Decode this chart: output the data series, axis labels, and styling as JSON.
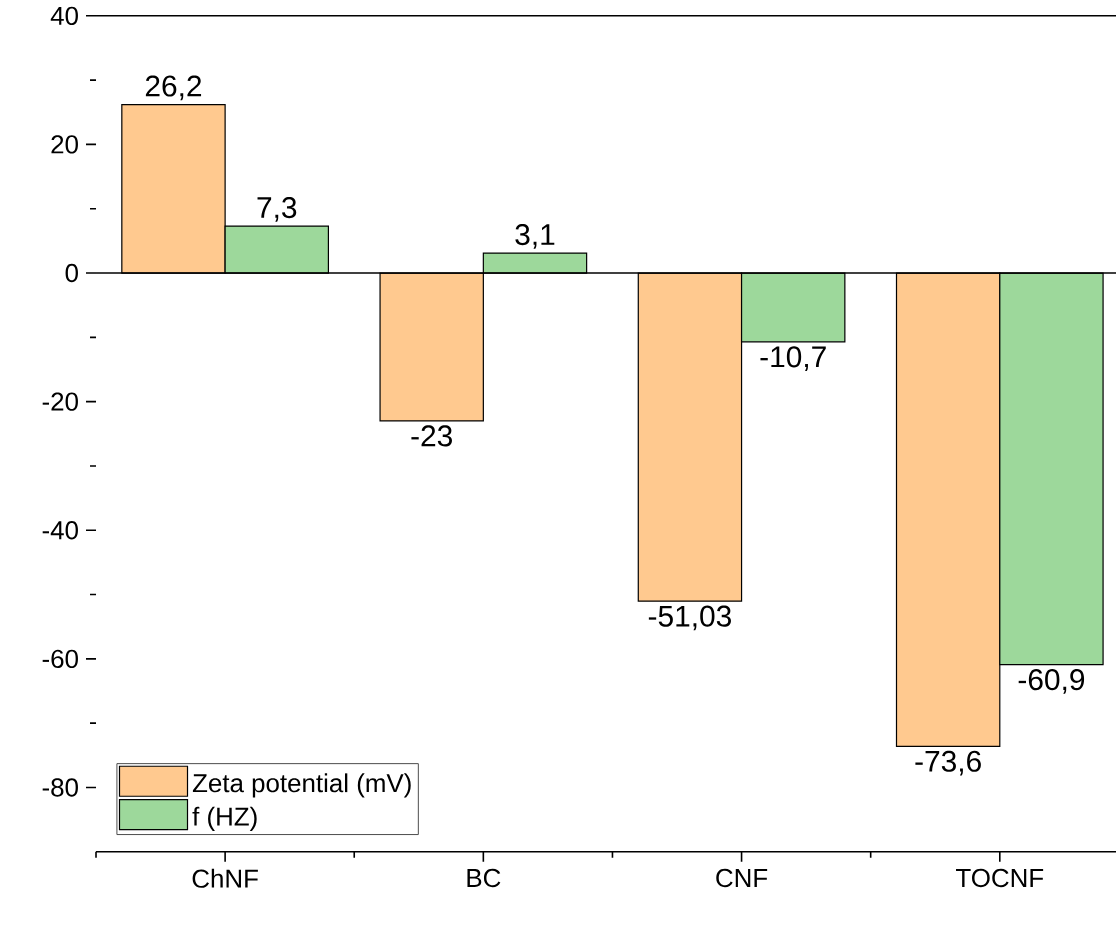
{
  "chart_data": {
    "type": "bar",
    "categories": [
      "ChNF",
      "BC",
      "CNF",
      "TOCNF"
    ],
    "series": [
      {
        "name": "Zeta potential (mV)",
        "color": "#ffc98f",
        "values": [
          26.2,
          -23,
          -51.03,
          -73.6
        ],
        "value_labels": [
          "26,2",
          "-23",
          "-51,03",
          "-73,6"
        ]
      },
      {
        "name": "f (HZ)",
        "color": "#9dd89b",
        "values": [
          7.3,
          3.1,
          -10.7,
          -60.9
        ],
        "value_labels": [
          "7,3",
          "3,1",
          "-10,7",
          "-60,9"
        ]
      }
    ],
    "ylim": [
      -90,
      40
    ],
    "yticks": [
      -80,
      -60,
      -40,
      -20,
      0,
      20,
      40
    ],
    "legend": "bottom left"
  }
}
